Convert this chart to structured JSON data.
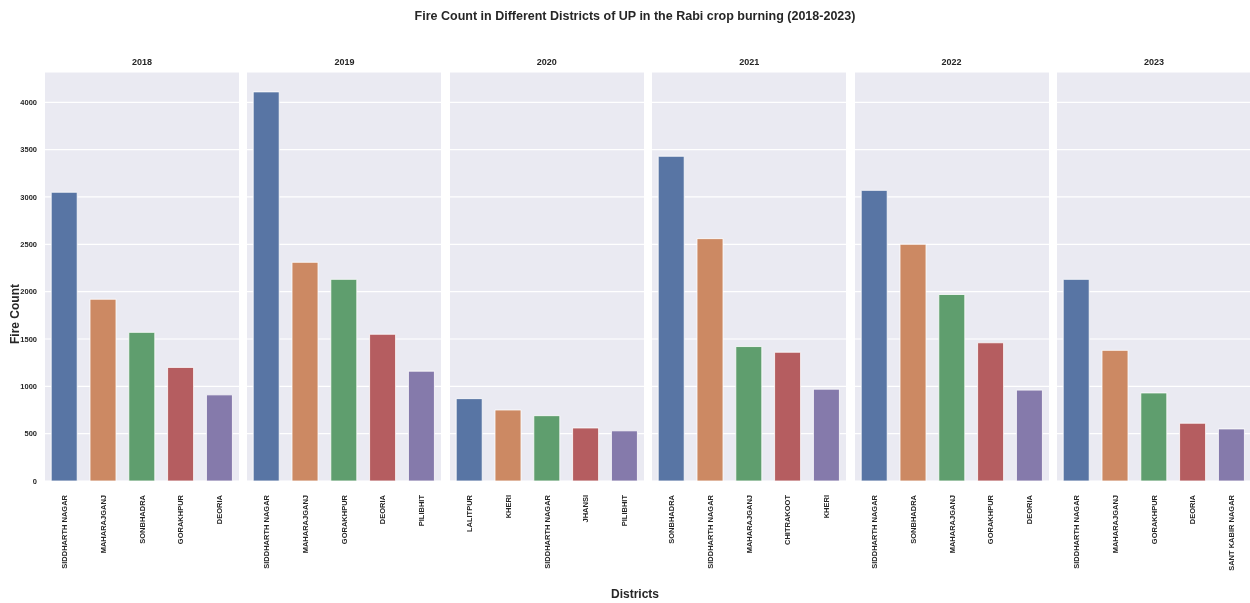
{
  "chart_data": [
    {
      "type": "bar",
      "title": "2018",
      "annotations": [
        "Fire Count in Different Districts of UP in the Rabi crop burning (2018-2023)",
        "Districts"
      ],
      "ylabel": "Fire Count",
      "categories": [
        "SIDDHARTH NAGAR",
        "MAHARAJGANJ",
        "SONBHADRA",
        "GORAKHPUR",
        "DEORIA"
      ],
      "values": [
        3050,
        1920,
        1570,
        1200,
        910
      ],
      "colors": [
        "#5875a4",
        "#cc8963",
        "#5f9e6e",
        "#b55d60",
        "#857aab"
      ],
      "ylim": [
        0,
        4320
      ],
      "yticks": [
        0,
        500,
        1000,
        1500,
        2000,
        2500,
        3000,
        3500,
        4000
      ],
      "grid": "y"
    },
    {
      "type": "bar",
      "title": "2019",
      "categories": [
        "SIDDHARTH NAGAR",
        "MAHARAJGANJ",
        "GORAKHPUR",
        "DEORIA",
        "PILIBHIT"
      ],
      "values": [
        4110,
        2310,
        2130,
        1550,
        1160
      ],
      "colors": [
        "#5875a4",
        "#cc8963",
        "#5f9e6e",
        "#b55d60",
        "#857aab"
      ],
      "ylim": [
        0,
        4320
      ],
      "yticks": [
        0,
        500,
        1000,
        1500,
        2000,
        2500,
        3000,
        3500,
        4000
      ],
      "grid": "y",
      "tick_labels": "x"
    },
    {
      "type": "bar",
      "title": "2020",
      "categories": [
        "LALITPUR",
        "KHERI",
        "SIDDHARTH NAGAR",
        "JHANSI",
        "PILIBHIT"
      ],
      "values": [
        870,
        750,
        690,
        560,
        530
      ],
      "colors": [
        "#5875a4",
        "#cc8963",
        "#5f9e6e",
        "#b55d60",
        "#857aab"
      ],
      "ylim": [
        0,
        4320
      ],
      "yticks": [
        0,
        500,
        1000,
        1500,
        2000,
        2500,
        3000,
        3500,
        4000
      ],
      "grid": "y",
      "tick_labels": "x"
    },
    {
      "type": "bar",
      "title": "2021",
      "categories": [
        "SONBHADRA",
        "SIDDHARTH NAGAR",
        "MAHARAJGANJ",
        "CHITRAKOOT",
        "KHERI"
      ],
      "values": [
        3430,
        2560,
        1420,
        1360,
        970
      ],
      "colors": [
        "#5875a4",
        "#cc8963",
        "#5f9e6e",
        "#b55d60",
        "#857aab"
      ],
      "ylim": [
        0,
        4320
      ],
      "yticks": [
        0,
        500,
        1000,
        1500,
        2000,
        2500,
        3000,
        3500,
        4000
      ],
      "grid": "y",
      "tick_labels": "x"
    },
    {
      "type": "bar",
      "title": "2022",
      "categories": [
        "SIDDHARTH NAGAR",
        "SONBHADRA",
        "MAHARAJGANJ",
        "GORAKHPUR",
        "DEORIA"
      ],
      "values": [
        3070,
        2500,
        1970,
        1460,
        960
      ],
      "colors": [
        "#5875a4",
        "#cc8963",
        "#5f9e6e",
        "#b55d60",
        "#857aab"
      ],
      "ylim": [
        0,
        4320
      ],
      "yticks": [
        0,
        500,
        1000,
        1500,
        2000,
        2500,
        3000,
        3500,
        4000
      ],
      "grid": "y",
      "tick_labels": "x"
    },
    {
      "type": "bar",
      "title": "2023",
      "categories": [
        "SIDDHARTH NAGAR",
        "MAHARAJGANJ",
        "GORAKHPUR",
        "DEORIA",
        "SANT KABIR NAGAR"
      ],
      "values": [
        2130,
        1380,
        930,
        610,
        550
      ],
      "colors": [
        "#5875a4",
        "#cc8963",
        "#5f9e6e",
        "#b55d60",
        "#857aab"
      ],
      "ylim": [
        0,
        4320
      ],
      "yticks": [
        0,
        500,
        1000,
        1500,
        2000,
        2500,
        3000,
        3500,
        4000
      ],
      "grid": "y",
      "tick_labels": "x"
    }
  ]
}
